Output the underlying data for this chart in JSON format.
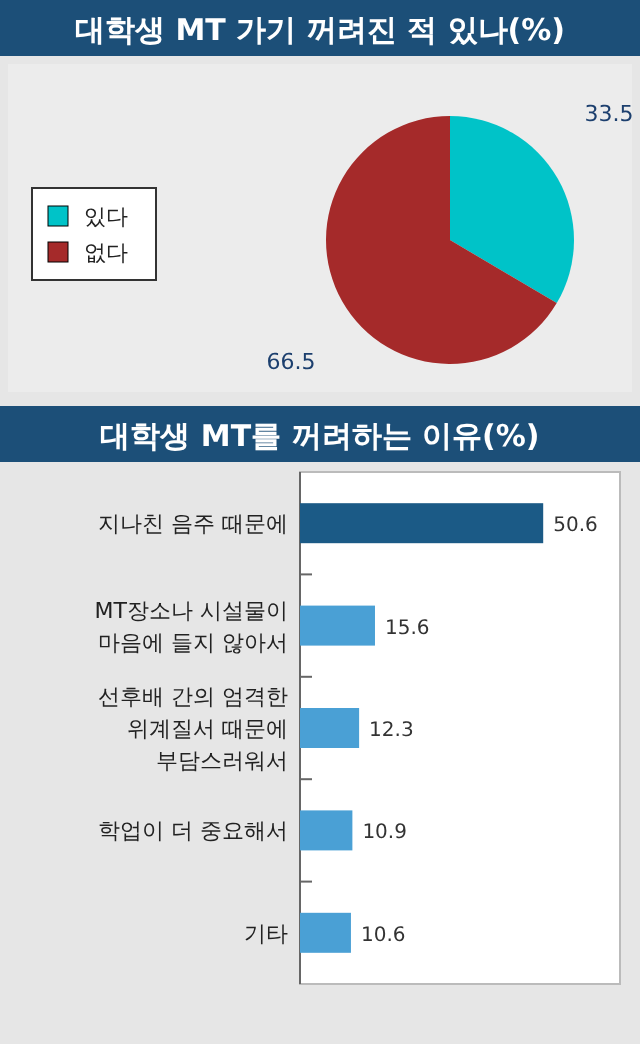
{
  "chart_data": [
    {
      "type": "pie",
      "title": "대학생 MT 가기 꺼려진 적 있나(%)",
      "categories": [
        "있다",
        "없다"
      ],
      "values": [
        33.5,
        66.5
      ],
      "colors": [
        "#00c3c8",
        "#a52a2a"
      ],
      "data_labels": true,
      "legend": "left"
    },
    {
      "type": "bar",
      "orientation": "horizontal",
      "title": "대학생 MT를 꺼려하는 이유(%)",
      "categories": [
        "지나친 음주 때문에",
        "MT장소나 시설물이\n마음에 들지 않아서",
        "선후배 간의 엄격한\n위계질서 때문에\n부담스러워서",
        "학업이 더 중요해서",
        "기타"
      ],
      "values": [
        50.6,
        15.6,
        12.3,
        10.9,
        10.6
      ],
      "colors": [
        "#1b5a86",
        "#4aa0d5",
        "#4aa0d5",
        "#4aa0d5",
        "#4aa0d5"
      ],
      "data_labels": true
    }
  ]
}
